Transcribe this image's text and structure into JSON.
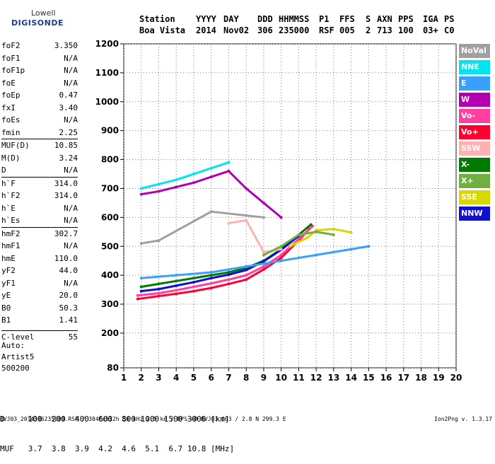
{
  "logo": {
    "line1": "Lowell",
    "line2": "DIGISONDE"
  },
  "header": {
    "columns": [
      {
        "label": "Station",
        "value": "Boa Vista"
      },
      {
        "label": "YYYY",
        "value": "2014"
      },
      {
        "label": "DAY",
        "value": "Nov02"
      },
      {
        "label": "DDD",
        "value": "306"
      },
      {
        "label": "HHMMSS",
        "value": "235000"
      },
      {
        "label": "P1",
        "value": "RSF"
      },
      {
        "label": "FFS",
        "value": "005"
      },
      {
        "label": "S",
        "value": "2"
      },
      {
        "label": "AXN",
        "value": "713"
      },
      {
        "label": "PPS",
        "value": "100"
      },
      {
        "label": "IGA",
        "value": "03+"
      },
      {
        "label": "PS",
        "value": "C0"
      }
    ]
  },
  "params": [
    {
      "name": "foF2",
      "value": "3.350"
    },
    {
      "name": "foF1",
      "value": "N/A"
    },
    {
      "name": "foF1p",
      "value": "N/A"
    },
    {
      "name": "foE",
      "value": "N/A"
    },
    {
      "name": "foEp",
      "value": "0.47"
    },
    {
      "name": "fxI",
      "value": "3.40"
    },
    {
      "name": "foEs",
      "value": "N/A"
    },
    {
      "name": "fmin",
      "value": "2.25"
    },
    {
      "name": "MUF(D)",
      "value": "10.85",
      "sep": true
    },
    {
      "name": "M(D)",
      "value": "3.24"
    },
    {
      "name": "D",
      "value": "N/A"
    },
    {
      "name": "h`F",
      "value": "314.0",
      "sep": true
    },
    {
      "name": "h`F2",
      "value": "314.0"
    },
    {
      "name": "h`E",
      "value": "N/A"
    },
    {
      "name": "h`Es",
      "value": "N/A"
    },
    {
      "name": "hmF2",
      "value": "302.7",
      "sep": true
    },
    {
      "name": "hmF1",
      "value": "N/A"
    },
    {
      "name": "hmE",
      "value": "110.0"
    },
    {
      "name": "yF2",
      "value": "44.0"
    },
    {
      "name": "yF1",
      "value": "N/A"
    },
    {
      "name": "yE",
      "value": "20.0"
    },
    {
      "name": "B0",
      "value": "50.3"
    },
    {
      "name": "B1",
      "value": "1.41"
    },
    {
      "name": "C-level",
      "value": "55",
      "sep": true,
      "gap": true
    }
  ],
  "auto": {
    "line1": "Auto:",
    "line2": "Artist5",
    "line3": "500200"
  },
  "distance_table": {
    "d_label": "D",
    "d_values": [
      "100",
      "200",
      "400",
      "600",
      "800",
      "1000",
      "1500",
      "3000"
    ],
    "d_unit": "[km]",
    "muf_label": "MUF",
    "muf_values": [
      "3.7",
      "3.8",
      "3.9",
      "4.2",
      "4.6",
      "5.1",
      "6.7",
      "10.8"
    ],
    "muf_unit": "[MHz]"
  },
  "footer": {
    "text": "BVJ03_2014306235000.RSF / 384fx512h 50 kHz 2.5 km / DPS-4D BVJ03 003 / 2.8 N 299.3 E",
    "version": "Ion2Png v. 1.3.17"
  },
  "legend": [
    {
      "label": "NoVal",
      "color": "#a0a0a0"
    },
    {
      "label": "NNE",
      "color": "#00e5ee"
    },
    {
      "label": "E",
      "color": "#3aa0ff"
    },
    {
      "label": "W",
      "color": "#b000b0"
    },
    {
      "label": "Vo-",
      "color": "#ff40a0"
    },
    {
      "label": "Vo+",
      "color": "#ff0030"
    },
    {
      "label": "SSW",
      "color": "#ffb0b0"
    },
    {
      "label": "X-",
      "color": "#007a00"
    },
    {
      "label": "X+",
      "color": "#70b040"
    },
    {
      "label": "SSE",
      "color": "#d8d800"
    },
    {
      "label": "NNW",
      "color": "#1010d0"
    }
  ],
  "chart_data": {
    "type": "scatter",
    "xlabel": "",
    "ylabel": "",
    "xlim": [
      1,
      20
    ],
    "ylim": [
      80,
      1200
    ],
    "x_ticks": [
      1,
      2,
      3,
      4,
      5,
      6,
      7,
      8,
      9,
      10,
      11,
      12,
      13,
      14,
      15,
      16,
      17,
      18,
      19,
      20
    ],
    "y_ticks": [
      80,
      200,
      300,
      400,
      500,
      600,
      700,
      800,
      900,
      1000,
      1100,
      1200
    ],
    "grid": true,
    "series": [
      {
        "name": "Vo+",
        "color": "#ff0030",
        "trace": [
          [
            1.8,
            318
          ],
          [
            3,
            328
          ],
          [
            4,
            336
          ],
          [
            5,
            345
          ],
          [
            6,
            356
          ],
          [
            7,
            370
          ],
          [
            8,
            385
          ],
          [
            9,
            420
          ],
          [
            10,
            460
          ],
          [
            11,
            520
          ],
          [
            11.6,
            560
          ]
        ]
      },
      {
        "name": "Vo-",
        "color": "#ff40a0",
        "trace": [
          [
            1.8,
            330
          ],
          [
            3,
            338
          ],
          [
            4,
            348
          ],
          [
            5,
            360
          ],
          [
            6,
            372
          ],
          [
            7,
            385
          ],
          [
            8,
            400
          ],
          [
            9,
            430
          ],
          [
            10,
            470
          ],
          [
            11,
            525
          ],
          [
            11.8,
            570
          ]
        ]
      },
      {
        "name": "X-",
        "color": "#007a00",
        "trace": [
          [
            2,
            360
          ],
          [
            3,
            370
          ],
          [
            4,
            380
          ],
          [
            5,
            390
          ],
          [
            6,
            400
          ],
          [
            7,
            410
          ],
          [
            8,
            425
          ],
          [
            9,
            450
          ],
          [
            10,
            490
          ],
          [
            11,
            540
          ],
          [
            11.7,
            575
          ]
        ]
      },
      {
        "name": "NNW",
        "color": "#1010d0",
        "trace": [
          [
            2,
            345
          ],
          [
            3,
            352
          ],
          [
            4,
            364
          ],
          [
            5,
            376
          ],
          [
            6,
            390
          ],
          [
            7,
            402
          ],
          [
            8,
            418
          ],
          [
            9,
            448
          ],
          [
            10,
            488
          ],
          [
            11,
            536
          ]
        ]
      },
      {
        "name": "W",
        "color": "#b000b0",
        "trace": [
          [
            2,
            680
          ],
          [
            3,
            690
          ],
          [
            4,
            705
          ],
          [
            5,
            720
          ],
          [
            6,
            740
          ],
          [
            7,
            760
          ],
          [
            8,
            700
          ],
          [
            9,
            650
          ],
          [
            10,
            600
          ]
        ]
      },
      {
        "name": "NNE",
        "color": "#00e5ee",
        "trace": [
          [
            2,
            700
          ],
          [
            3,
            715
          ],
          [
            4,
            730
          ],
          [
            5,
            750
          ],
          [
            6,
            770
          ],
          [
            7,
            790
          ]
        ]
      },
      {
        "name": "E",
        "color": "#3aa0ff",
        "trace": [
          [
            2,
            390
          ],
          [
            4,
            400
          ],
          [
            6,
            410
          ],
          [
            8,
            430
          ],
          [
            10,
            450
          ],
          [
            12,
            470
          ],
          [
            14,
            490
          ],
          [
            15,
            500
          ]
        ]
      },
      {
        "name": "SSE",
        "color": "#d8d800",
        "trace": [
          [
            10.5,
            500
          ],
          [
            11.5,
            530
          ],
          [
            12,
            555
          ],
          [
            13,
            560
          ],
          [
            14,
            548
          ]
        ]
      },
      {
        "name": "SSW",
        "color": "#ffb0b0",
        "trace": [
          [
            7,
            580
          ],
          [
            8,
            590
          ],
          [
            9,
            480
          ],
          [
            10,
            490
          ]
        ]
      },
      {
        "name": "X+",
        "color": "#70b040",
        "trace": [
          [
            9,
            470
          ],
          [
            10,
            500
          ],
          [
            11,
            540
          ],
          [
            12,
            550
          ],
          [
            13,
            540
          ]
        ]
      },
      {
        "name": "NoVal",
        "color": "#a0a0a0",
        "trace": [
          [
            2,
            510
          ],
          [
            3,
            520
          ],
          [
            6,
            620
          ],
          [
            9,
            600
          ]
        ]
      }
    ]
  }
}
